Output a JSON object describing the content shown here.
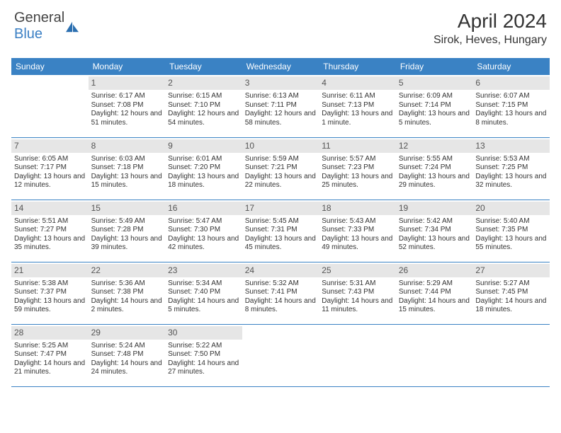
{
  "logo": {
    "text1": "General",
    "text2": "Blue"
  },
  "header": {
    "month_year": "April 2024",
    "location": "Sirok, Heves, Hungary"
  },
  "colors": {
    "header_bg": "#3a82c4",
    "daynum_bg": "#e6e6e6",
    "border": "#3a82c4",
    "text": "#333333"
  },
  "weekdays": [
    "Sunday",
    "Monday",
    "Tuesday",
    "Wednesday",
    "Thursday",
    "Friday",
    "Saturday"
  ],
  "weeks": [
    [
      null,
      {
        "d": "1",
        "sr": "Sunrise: 6:17 AM",
        "ss": "Sunset: 7:08 PM",
        "dl": "Daylight: 12 hours and 51 minutes."
      },
      {
        "d": "2",
        "sr": "Sunrise: 6:15 AM",
        "ss": "Sunset: 7:10 PM",
        "dl": "Daylight: 12 hours and 54 minutes."
      },
      {
        "d": "3",
        "sr": "Sunrise: 6:13 AM",
        "ss": "Sunset: 7:11 PM",
        "dl": "Daylight: 12 hours and 58 minutes."
      },
      {
        "d": "4",
        "sr": "Sunrise: 6:11 AM",
        "ss": "Sunset: 7:13 PM",
        "dl": "Daylight: 13 hours and 1 minute."
      },
      {
        "d": "5",
        "sr": "Sunrise: 6:09 AM",
        "ss": "Sunset: 7:14 PM",
        "dl": "Daylight: 13 hours and 5 minutes."
      },
      {
        "d": "6",
        "sr": "Sunrise: 6:07 AM",
        "ss": "Sunset: 7:15 PM",
        "dl": "Daylight: 13 hours and 8 minutes."
      }
    ],
    [
      {
        "d": "7",
        "sr": "Sunrise: 6:05 AM",
        "ss": "Sunset: 7:17 PM",
        "dl": "Daylight: 13 hours and 12 minutes."
      },
      {
        "d": "8",
        "sr": "Sunrise: 6:03 AM",
        "ss": "Sunset: 7:18 PM",
        "dl": "Daylight: 13 hours and 15 minutes."
      },
      {
        "d": "9",
        "sr": "Sunrise: 6:01 AM",
        "ss": "Sunset: 7:20 PM",
        "dl": "Daylight: 13 hours and 18 minutes."
      },
      {
        "d": "10",
        "sr": "Sunrise: 5:59 AM",
        "ss": "Sunset: 7:21 PM",
        "dl": "Daylight: 13 hours and 22 minutes."
      },
      {
        "d": "11",
        "sr": "Sunrise: 5:57 AM",
        "ss": "Sunset: 7:23 PM",
        "dl": "Daylight: 13 hours and 25 minutes."
      },
      {
        "d": "12",
        "sr": "Sunrise: 5:55 AM",
        "ss": "Sunset: 7:24 PM",
        "dl": "Daylight: 13 hours and 29 minutes."
      },
      {
        "d": "13",
        "sr": "Sunrise: 5:53 AM",
        "ss": "Sunset: 7:25 PM",
        "dl": "Daylight: 13 hours and 32 minutes."
      }
    ],
    [
      {
        "d": "14",
        "sr": "Sunrise: 5:51 AM",
        "ss": "Sunset: 7:27 PM",
        "dl": "Daylight: 13 hours and 35 minutes."
      },
      {
        "d": "15",
        "sr": "Sunrise: 5:49 AM",
        "ss": "Sunset: 7:28 PM",
        "dl": "Daylight: 13 hours and 39 minutes."
      },
      {
        "d": "16",
        "sr": "Sunrise: 5:47 AM",
        "ss": "Sunset: 7:30 PM",
        "dl": "Daylight: 13 hours and 42 minutes."
      },
      {
        "d": "17",
        "sr": "Sunrise: 5:45 AM",
        "ss": "Sunset: 7:31 PM",
        "dl": "Daylight: 13 hours and 45 minutes."
      },
      {
        "d": "18",
        "sr": "Sunrise: 5:43 AM",
        "ss": "Sunset: 7:33 PM",
        "dl": "Daylight: 13 hours and 49 minutes."
      },
      {
        "d": "19",
        "sr": "Sunrise: 5:42 AM",
        "ss": "Sunset: 7:34 PM",
        "dl": "Daylight: 13 hours and 52 minutes."
      },
      {
        "d": "20",
        "sr": "Sunrise: 5:40 AM",
        "ss": "Sunset: 7:35 PM",
        "dl": "Daylight: 13 hours and 55 minutes."
      }
    ],
    [
      {
        "d": "21",
        "sr": "Sunrise: 5:38 AM",
        "ss": "Sunset: 7:37 PM",
        "dl": "Daylight: 13 hours and 59 minutes."
      },
      {
        "d": "22",
        "sr": "Sunrise: 5:36 AM",
        "ss": "Sunset: 7:38 PM",
        "dl": "Daylight: 14 hours and 2 minutes."
      },
      {
        "d": "23",
        "sr": "Sunrise: 5:34 AM",
        "ss": "Sunset: 7:40 PM",
        "dl": "Daylight: 14 hours and 5 minutes."
      },
      {
        "d": "24",
        "sr": "Sunrise: 5:32 AM",
        "ss": "Sunset: 7:41 PM",
        "dl": "Daylight: 14 hours and 8 minutes."
      },
      {
        "d": "25",
        "sr": "Sunrise: 5:31 AM",
        "ss": "Sunset: 7:43 PM",
        "dl": "Daylight: 14 hours and 11 minutes."
      },
      {
        "d": "26",
        "sr": "Sunrise: 5:29 AM",
        "ss": "Sunset: 7:44 PM",
        "dl": "Daylight: 14 hours and 15 minutes."
      },
      {
        "d": "27",
        "sr": "Sunrise: 5:27 AM",
        "ss": "Sunset: 7:45 PM",
        "dl": "Daylight: 14 hours and 18 minutes."
      }
    ],
    [
      {
        "d": "28",
        "sr": "Sunrise: 5:25 AM",
        "ss": "Sunset: 7:47 PM",
        "dl": "Daylight: 14 hours and 21 minutes."
      },
      {
        "d": "29",
        "sr": "Sunrise: 5:24 AM",
        "ss": "Sunset: 7:48 PM",
        "dl": "Daylight: 14 hours and 24 minutes."
      },
      {
        "d": "30",
        "sr": "Sunrise: 5:22 AM",
        "ss": "Sunset: 7:50 PM",
        "dl": "Daylight: 14 hours and 27 minutes."
      },
      null,
      null,
      null,
      null
    ]
  ]
}
